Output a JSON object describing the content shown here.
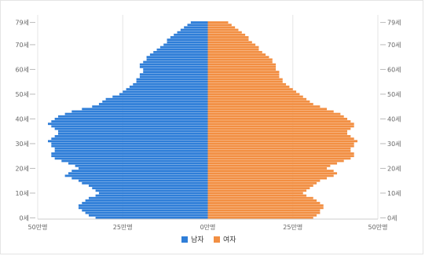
{
  "chart_data": {
    "type": "bar",
    "orientation": "horizontal",
    "title": "",
    "grid": true,
    "legend_placement": "bottom",
    "age_ticks": [
      "0세",
      "10세",
      "20세",
      "30세",
      "40세",
      "50세",
      "60세",
      "70세",
      "79세"
    ],
    "age_tick_values": [
      0,
      10,
      20,
      30,
      40,
      50,
      60,
      70,
      79
    ],
    "x_ticks": [
      "50만명",
      "25만명",
      "0만명",
      "25만명",
      "50만명"
    ],
    "x_tick_values": [
      -50,
      -25,
      0,
      25,
      50
    ],
    "xlim": [
      -50,
      50
    ],
    "ages": [
      0,
      1,
      2,
      3,
      4,
      5,
      6,
      7,
      8,
      9,
      10,
      11,
      12,
      13,
      14,
      15,
      16,
      17,
      18,
      19,
      20,
      21,
      22,
      23,
      24,
      25,
      26,
      27,
      28,
      29,
      30,
      31,
      32,
      33,
      34,
      35,
      36,
      37,
      38,
      39,
      40,
      41,
      42,
      43,
      44,
      45,
      46,
      47,
      48,
      49,
      50,
      51,
      52,
      53,
      54,
      55,
      56,
      57,
      58,
      59,
      60,
      61,
      62,
      63,
      64,
      65,
      66,
      67,
      68,
      69,
      70,
      71,
      72,
      73,
      74,
      75,
      76,
      77,
      78,
      79
    ],
    "series": [
      {
        "name": "남자",
        "color": "#2f7ed8",
        "values": [
          33,
          35,
          36,
          37,
          38,
          38,
          37,
          36,
          35,
          33,
          32,
          33,
          34,
          35,
          37,
          38,
          40,
          42,
          41,
          40,
          38,
          39,
          41,
          43,
          45,
          46,
          46,
          45,
          45,
          46,
          46,
          47,
          46,
          45,
          44,
          44,
          45,
          46,
          47,
          46,
          45,
          44,
          42,
          40,
          37,
          34,
          32,
          31,
          30,
          28,
          26,
          25,
          24,
          23,
          22,
          21,
          21,
          20,
          20,
          19,
          19,
          20,
          20,
          19,
          18,
          18,
          17,
          16,
          15,
          14,
          13,
          12,
          12,
          11,
          10,
          9,
          8,
          7,
          6,
          5
        ]
      },
      {
        "name": "여자",
        "color": "#f28f43",
        "values": [
          31,
          32,
          33,
          33,
          34,
          34,
          33,
          32,
          31,
          29,
          28,
          29,
          30,
          31,
          32,
          33,
          35,
          37,
          38,
          37,
          35,
          36,
          38,
          40,
          42,
          43,
          43,
          42,
          42,
          43,
          43,
          44,
          43,
          42,
          41,
          41,
          42,
          43,
          43,
          42,
          41,
          40,
          39,
          37,
          35,
          33,
          31,
          30,
          29,
          28,
          27,
          26,
          25,
          24,
          23,
          22,
          22,
          21,
          21,
          21,
          20,
          20,
          20,
          19,
          19,
          18,
          17,
          16,
          15,
          15,
          14,
          13,
          12,
          12,
          11,
          10,
          9,
          8,
          7,
          6
        ]
      }
    ]
  }
}
